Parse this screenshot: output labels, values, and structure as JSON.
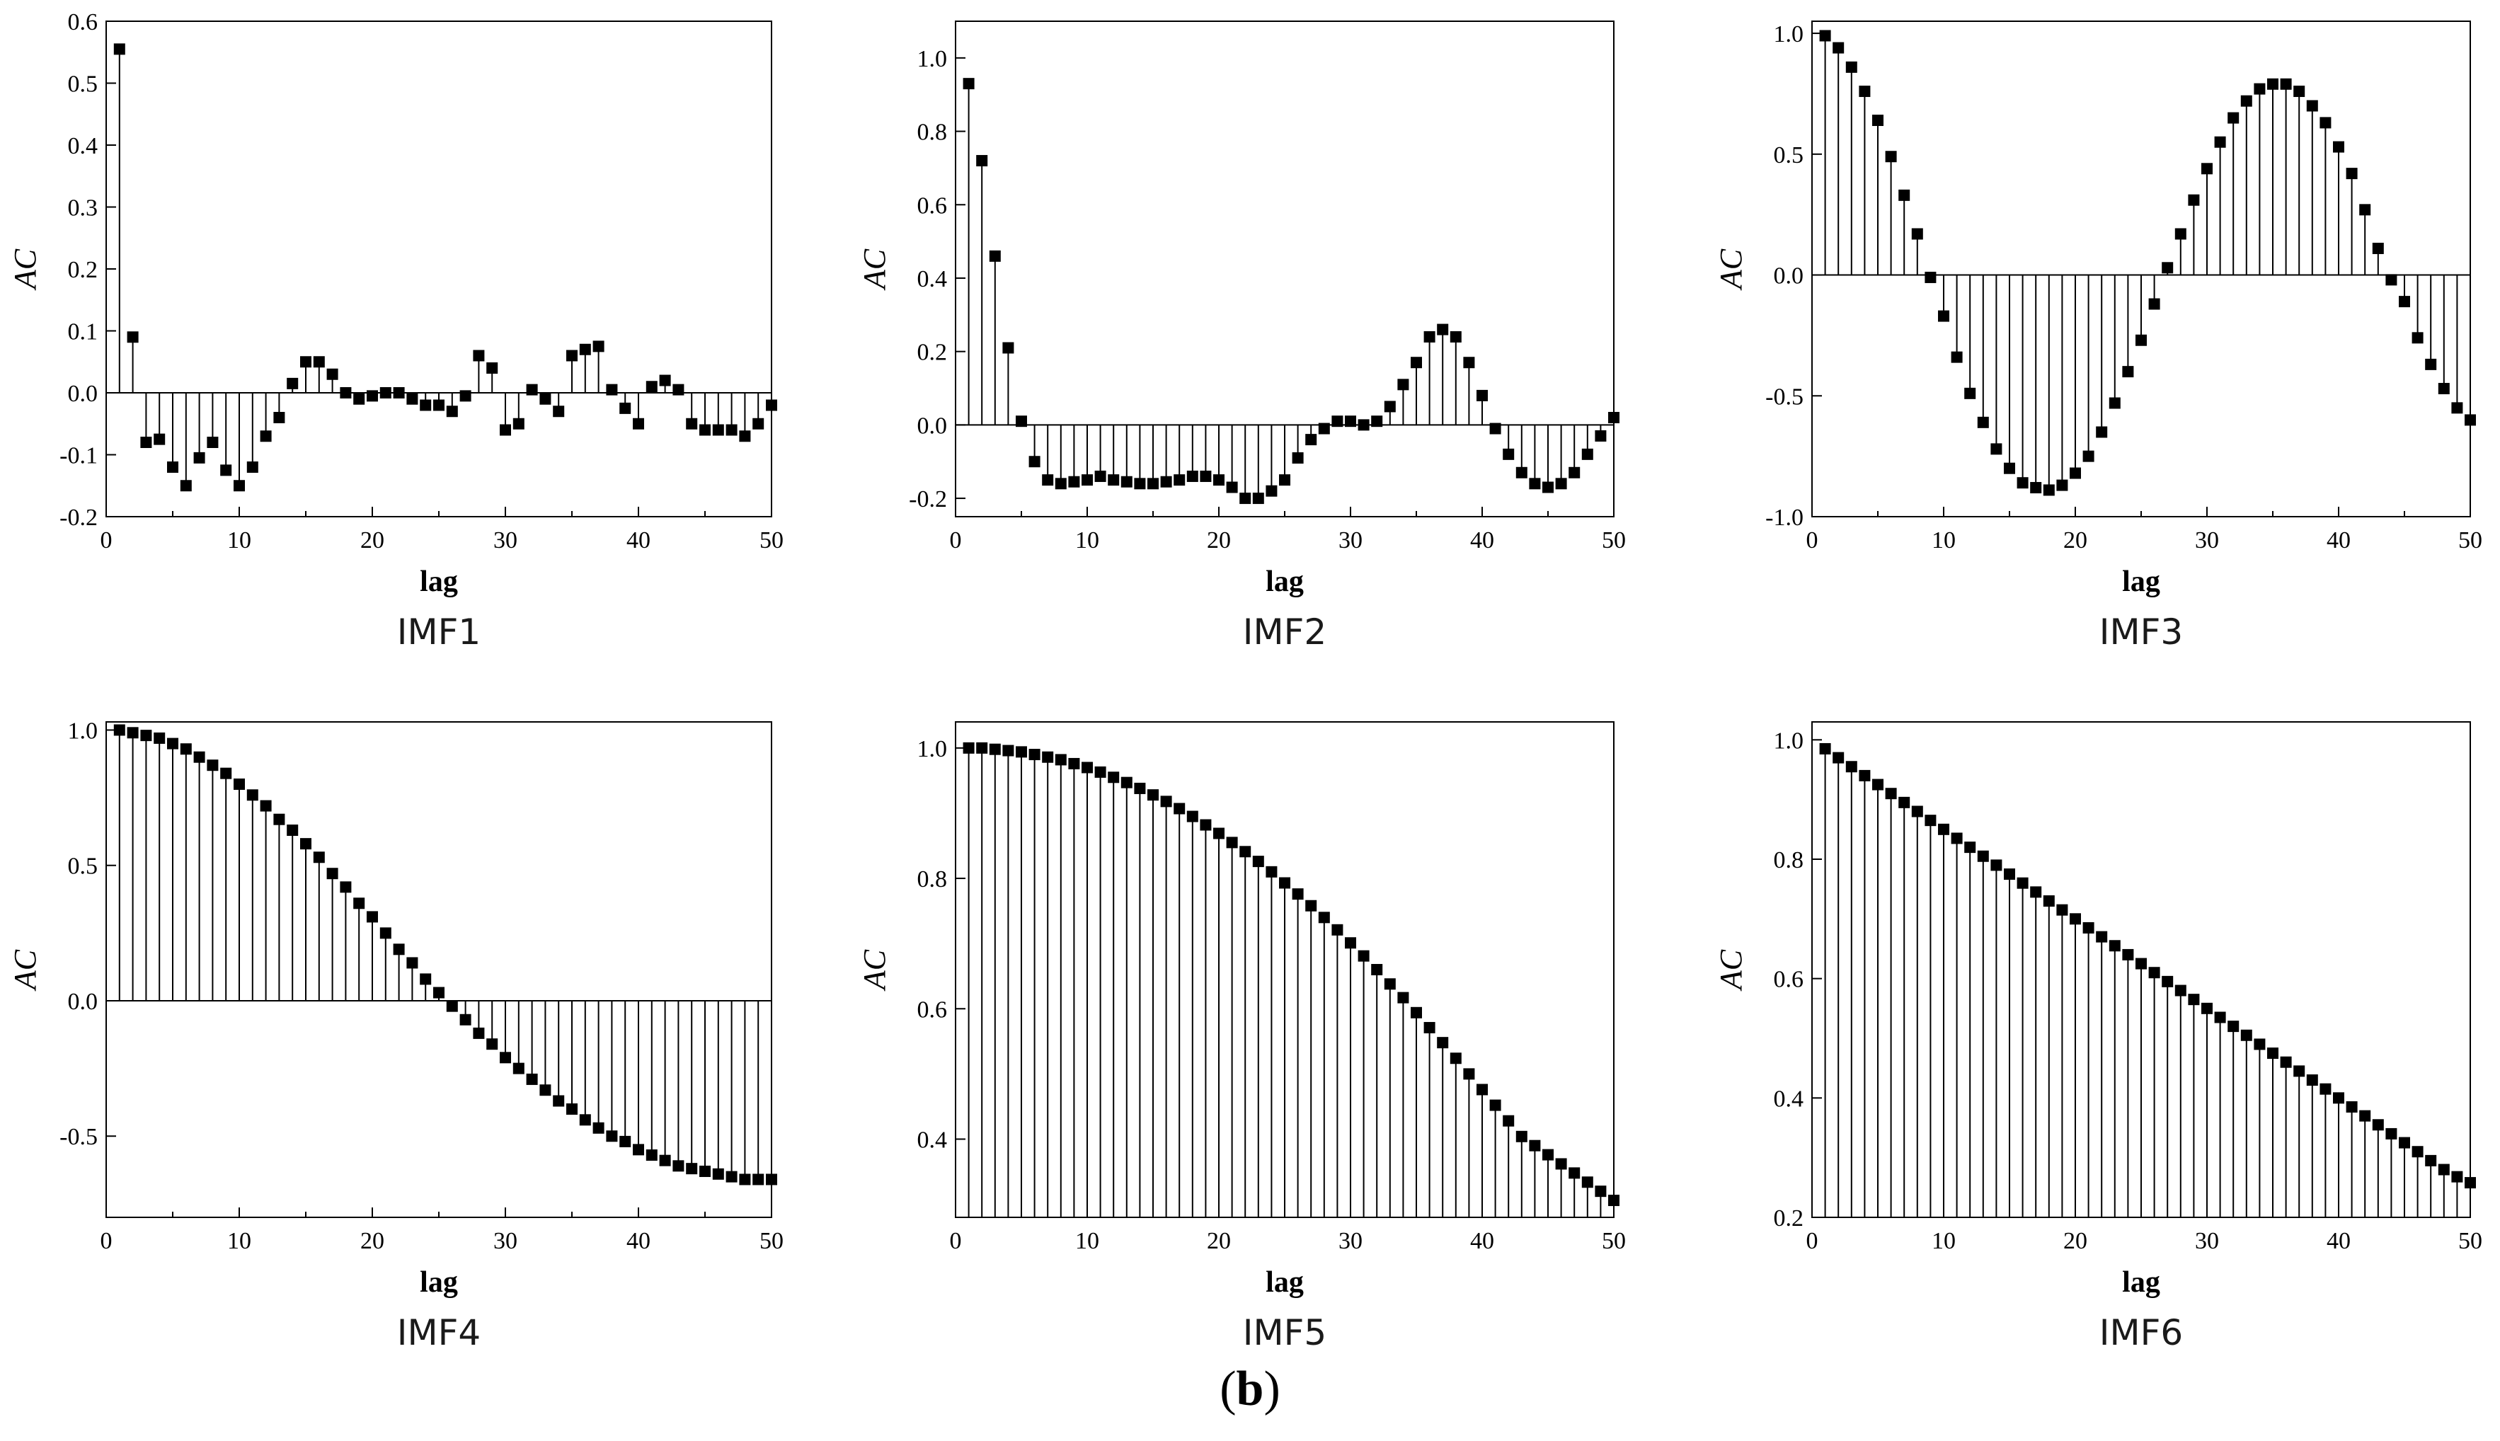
{
  "figure_label": {
    "open": "(",
    "letter": "b",
    "close": ")"
  },
  "chart_data": [
    {
      "type": "stem",
      "caption": "IMF1",
      "xlabel": "lag",
      "ylabel": "AC",
      "xlim": [
        0,
        50
      ],
      "ylim": [
        -0.2,
        0.6
      ],
      "xticks": [
        0,
        10,
        20,
        30,
        40,
        50
      ],
      "yticks": [
        -0.2,
        -0.1,
        0.0,
        0.1,
        0.2,
        0.3,
        0.4,
        0.5,
        0.6
      ],
      "ytick_labels": [
        "-0.2",
        "-0.1",
        "0.0",
        "0.1",
        "0.2",
        "0.3",
        "0.4",
        "0.5",
        "0.6"
      ],
      "x": [
        1,
        2,
        3,
        4,
        5,
        6,
        7,
        8,
        9,
        10,
        11,
        12,
        13,
        14,
        15,
        16,
        17,
        18,
        19,
        20,
        21,
        22,
        23,
        24,
        25,
        26,
        27,
        28,
        29,
        30,
        31,
        32,
        33,
        34,
        35,
        36,
        37,
        38,
        39,
        40,
        41,
        42,
        43,
        44,
        45,
        46,
        47,
        48,
        49,
        50
      ],
      "y": [
        0.555,
        0.09,
        -0.08,
        -0.075,
        -0.12,
        -0.15,
        -0.105,
        -0.08,
        -0.125,
        -0.15,
        -0.12,
        -0.07,
        -0.04,
        0.015,
        0.05,
        0.05,
        0.03,
        0.0,
        -0.01,
        -0.005,
        0.0,
        0.0,
        -0.01,
        -0.02,
        -0.02,
        -0.03,
        -0.005,
        0.06,
        0.04,
        -0.06,
        -0.05,
        0.005,
        -0.01,
        -0.03,
        0.06,
        0.07,
        0.075,
        0.005,
        -0.025,
        -0.05,
        0.01,
        0.02,
        0.005,
        -0.05,
        -0.06,
        -0.06,
        -0.06,
        -0.07,
        -0.05,
        -0.02
      ]
    },
    {
      "type": "stem",
      "caption": "IMF2",
      "xlabel": "lag",
      "ylabel": "AC",
      "xlim": [
        0,
        50
      ],
      "ylim": [
        -0.25,
        1.1
      ],
      "xticks": [
        0,
        10,
        20,
        30,
        40,
        50
      ],
      "yticks": [
        -0.2,
        0.0,
        0.2,
        0.4,
        0.6,
        0.8,
        1.0
      ],
      "ytick_labels": [
        "-0.2",
        "0.0",
        "0.2",
        "0.4",
        "0.6",
        "0.8",
        "1.0"
      ],
      "x": [
        1,
        2,
        3,
        4,
        5,
        6,
        7,
        8,
        9,
        10,
        11,
        12,
        13,
        14,
        15,
        16,
        17,
        18,
        19,
        20,
        21,
        22,
        23,
        24,
        25,
        26,
        27,
        28,
        29,
        30,
        31,
        32,
        33,
        34,
        35,
        36,
        37,
        38,
        39,
        40,
        41,
        42,
        43,
        44,
        45,
        46,
        47,
        48,
        49,
        50
      ],
      "y": [
        0.93,
        0.72,
        0.46,
        0.21,
        0.01,
        -0.1,
        -0.15,
        -0.16,
        -0.155,
        -0.15,
        -0.14,
        -0.15,
        -0.155,
        -0.16,
        -0.16,
        -0.155,
        -0.15,
        -0.14,
        -0.14,
        -0.15,
        -0.17,
        -0.2,
        -0.2,
        -0.18,
        -0.15,
        -0.09,
        -0.04,
        -0.01,
        0.01,
        0.01,
        0.0,
        0.01,
        0.05,
        0.11,
        0.17,
        0.24,
        0.26,
        0.24,
        0.17,
        0.08,
        -0.01,
        -0.08,
        -0.13,
        -0.16,
        -0.17,
        -0.16,
        -0.13,
        -0.08,
        -0.03,
        0.02
      ]
    },
    {
      "type": "stem",
      "caption": "IMF3",
      "xlabel": "lag",
      "ylabel": "AC",
      "xlim": [
        0,
        50
      ],
      "ylim": [
        -1.0,
        1.05
      ],
      "xticks": [
        0,
        10,
        20,
        30,
        40,
        50
      ],
      "yticks": [
        -1.0,
        -0.5,
        0.0,
        0.5,
        1.0
      ],
      "ytick_labels": [
        "-1.0",
        "-0.5",
        "0.0",
        "0.5",
        "1.0"
      ],
      "x": [
        1,
        2,
        3,
        4,
        5,
        6,
        7,
        8,
        9,
        10,
        11,
        12,
        13,
        14,
        15,
        16,
        17,
        18,
        19,
        20,
        21,
        22,
        23,
        24,
        25,
        26,
        27,
        28,
        29,
        30,
        31,
        32,
        33,
        34,
        35,
        36,
        37,
        38,
        39,
        40,
        41,
        42,
        43,
        44,
        45,
        46,
        47,
        48,
        49,
        50
      ],
      "y": [
        0.99,
        0.94,
        0.86,
        0.76,
        0.64,
        0.49,
        0.33,
        0.17,
        -0.01,
        -0.17,
        -0.34,
        -0.49,
        -0.61,
        -0.72,
        -0.8,
        -0.86,
        -0.88,
        -0.89,
        -0.87,
        -0.82,
        -0.75,
        -0.65,
        -0.53,
        -0.4,
        -0.27,
        -0.12,
        0.03,
        0.17,
        0.31,
        0.44,
        0.55,
        0.65,
        0.72,
        0.77,
        0.79,
        0.79,
        0.76,
        0.7,
        0.63,
        0.53,
        0.42,
        0.27,
        0.11,
        -0.02,
        -0.11,
        -0.26,
        -0.37,
        -0.47,
        -0.55,
        -0.6
      ]
    },
    {
      "type": "stem",
      "caption": "IMF4",
      "xlabel": "lag",
      "ylabel": "AC",
      "xlim": [
        0,
        50
      ],
      "ylim": [
        -0.8,
        1.03
      ],
      "xticks": [
        0,
        10,
        20,
        30,
        40,
        50
      ],
      "yticks": [
        -0.5,
        0.0,
        0.5,
        1.0
      ],
      "ytick_labels": [
        "-0.5",
        "0.0",
        "0.5",
        "1.0"
      ],
      "x": [
        1,
        2,
        3,
        4,
        5,
        6,
        7,
        8,
        9,
        10,
        11,
        12,
        13,
        14,
        15,
        16,
        17,
        18,
        19,
        20,
        21,
        22,
        23,
        24,
        25,
        26,
        27,
        28,
        29,
        30,
        31,
        32,
        33,
        34,
        35,
        36,
        37,
        38,
        39,
        40,
        41,
        42,
        43,
        44,
        45,
        46,
        47,
        48,
        49,
        50
      ],
      "y": [
        1.0,
        0.99,
        0.98,
        0.97,
        0.95,
        0.93,
        0.9,
        0.87,
        0.84,
        0.8,
        0.76,
        0.72,
        0.67,
        0.63,
        0.58,
        0.53,
        0.47,
        0.42,
        0.36,
        0.31,
        0.25,
        0.19,
        0.14,
        0.08,
        0.03,
        -0.02,
        -0.07,
        -0.12,
        -0.16,
        -0.21,
        -0.25,
        -0.29,
        -0.33,
        -0.37,
        -0.4,
        -0.44,
        -0.47,
        -0.5,
        -0.52,
        -0.55,
        -0.57,
        -0.59,
        -0.61,
        -0.62,
        -0.63,
        -0.64,
        -0.65,
        -0.66,
        -0.66,
        -0.66
      ]
    },
    {
      "type": "stem",
      "caption": "IMF5",
      "xlabel": "lag",
      "ylabel": "AC",
      "xlim": [
        0,
        50
      ],
      "ylim": [
        0.28,
        1.04
      ],
      "xticks": [
        0,
        10,
        20,
        30,
        40,
        50
      ],
      "yticks": [
        0.4,
        0.6,
        0.8,
        1.0
      ],
      "ytick_labels": [
        "0.4",
        "0.6",
        "0.8",
        "1.0"
      ],
      "x": [
        1,
        2,
        3,
        4,
        5,
        6,
        7,
        8,
        9,
        10,
        11,
        12,
        13,
        14,
        15,
        16,
        17,
        18,
        19,
        20,
        21,
        22,
        23,
        24,
        25,
        26,
        27,
        28,
        29,
        30,
        31,
        32,
        33,
        34,
        35,
        36,
        37,
        38,
        39,
        40,
        41,
        42,
        43,
        44,
        45,
        46,
        47,
        48,
        49,
        50
      ],
      "y": [
        1.0,
        1.0,
        0.998,
        0.996,
        0.994,
        0.99,
        0.986,
        0.982,
        0.976,
        0.97,
        0.963,
        0.955,
        0.947,
        0.938,
        0.928,
        0.918,
        0.907,
        0.895,
        0.882,
        0.869,
        0.855,
        0.841,
        0.826,
        0.81,
        0.793,
        0.776,
        0.758,
        0.74,
        0.721,
        0.701,
        0.681,
        0.66,
        0.638,
        0.617,
        0.594,
        0.571,
        0.548,
        0.524,
        0.5,
        0.476,
        0.452,
        0.428,
        0.404,
        0.39,
        0.376,
        0.362,
        0.348,
        0.334,
        0.32,
        0.306
      ]
    },
    {
      "type": "stem",
      "caption": "IMF6",
      "xlabel": "lag",
      "ylabel": "AC",
      "xlim": [
        0,
        50
      ],
      "ylim": [
        0.2,
        1.03
      ],
      "xticks": [
        0,
        10,
        20,
        30,
        40,
        50
      ],
      "yticks": [
        0.2,
        0.4,
        0.6,
        0.8,
        1.0
      ],
      "ytick_labels": [
        "0.2",
        "0.4",
        "0.6",
        "0.8",
        "1.0"
      ],
      "x": [
        1,
        2,
        3,
        4,
        5,
        6,
        7,
        8,
        9,
        10,
        11,
        12,
        13,
        14,
        15,
        16,
        17,
        18,
        19,
        20,
        21,
        22,
        23,
        24,
        25,
        26,
        27,
        28,
        29,
        30,
        31,
        32,
        33,
        34,
        35,
        36,
        37,
        38,
        39,
        40,
        41,
        42,
        43,
        44,
        45,
        46,
        47,
        48,
        49,
        50
      ],
      "y": [
        0.985,
        0.97,
        0.955,
        0.94,
        0.925,
        0.91,
        0.895,
        0.88,
        0.865,
        0.85,
        0.835,
        0.82,
        0.805,
        0.79,
        0.775,
        0.76,
        0.745,
        0.73,
        0.715,
        0.7,
        0.685,
        0.67,
        0.655,
        0.64,
        0.625,
        0.61,
        0.595,
        0.58,
        0.565,
        0.55,
        0.535,
        0.52,
        0.505,
        0.49,
        0.475,
        0.46,
        0.445,
        0.43,
        0.415,
        0.4,
        0.385,
        0.37,
        0.355,
        0.34,
        0.325,
        0.31,
        0.295,
        0.28,
        0.268,
        0.258
      ]
    }
  ]
}
